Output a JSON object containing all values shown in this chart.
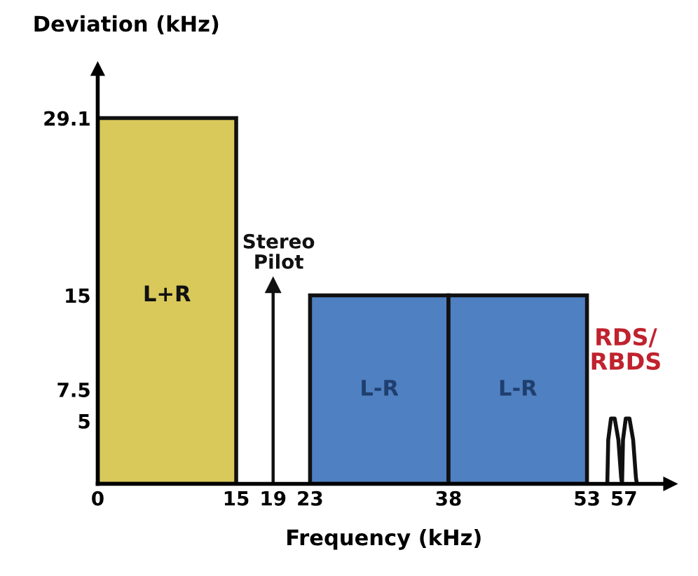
{
  "chart_data": {
    "type": "histogram",
    "ylabel": "Deviation (kHz)",
    "xlabel": "Frequency (kHz)",
    "bins": [
      0,
      15,
      23,
      38,
      53
    ],
    "values": [
      29.1,
      null,
      15,
      15
    ],
    "colors": [
      "#d9c95a",
      null,
      "#4f80c2",
      "#4f80c2"
    ],
    "series": [
      {
        "type": "line",
        "name": "Stereo\nPilot",
        "color": "#111111",
        "x": [
          19,
          19
        ],
        "values": [
          0,
          15.8
        ]
      },
      {
        "type": "line",
        "name": "RDS/\nRBDS",
        "color": "#111111",
        "x": [
          55.2,
          55.3,
          55.6,
          56.0,
          56.4,
          56.7,
          56.8,
          56.9,
          57.2,
          57.6,
          58.0,
          58.3,
          58.4
        ],
        "values": [
          0,
          3.5,
          5.2,
          5.2,
          3.5,
          0.5,
          0,
          3.5,
          5.2,
          5.2,
          3.5,
          0.5,
          0
        ]
      }
    ],
    "annotations": [
      "L+R",
      "L-R",
      "L-R"
    ],
    "xlim": [
      0,
      62
    ],
    "ylim": [
      0,
      33
    ],
    "xticks": [
      0,
      15,
      19,
      23,
      38,
      53,
      57
    ],
    "yticks": [
      5,
      7.5,
      15,
      29.1
    ],
    "grid": false,
    "legend": false
  }
}
